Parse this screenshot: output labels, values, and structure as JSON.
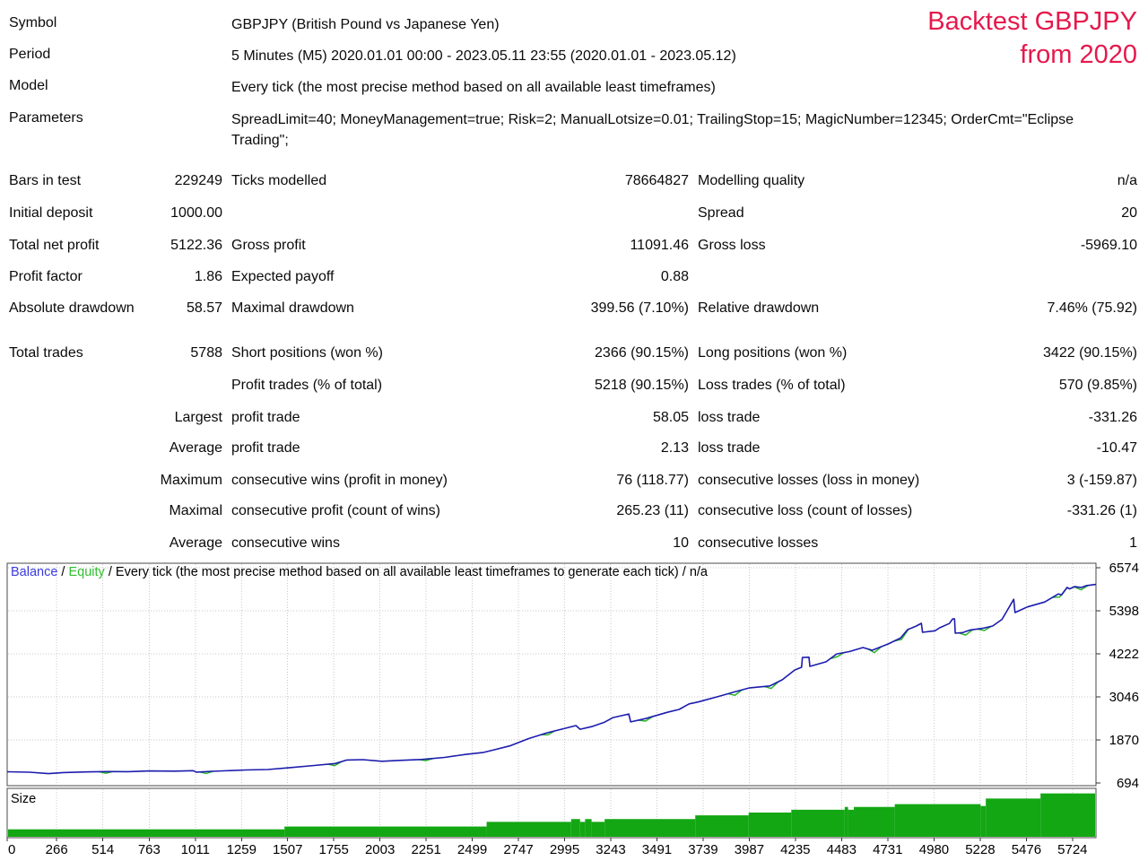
{
  "title": {
    "line1": "Backtest GBPJPY",
    "line2": "from 2020"
  },
  "info_rows": [
    {
      "label": "Symbol",
      "value": "GBPJPY (British Pound vs Japanese Yen)"
    },
    {
      "label": "Period",
      "value": "5 Minutes (M5) 2020.01.01 00:00 - 2023.05.11 23:55 (2020.01.01 - 2023.05.12)"
    },
    {
      "label": "Model",
      "value": "Every tick (the most precise method based on all available least timeframes)"
    },
    {
      "label": "Parameters",
      "value": "SpreadLimit=40; MoneyManagement=true; Risk=2; ManualLotsize=0.01; TrailingStop=15; MagicNumber=12345; OrderCmt=\"Eclipse Trading\";"
    }
  ],
  "stats_rows": [
    {
      "cells": [
        "Bars in test",
        "229249",
        "Ticks modelled",
        "78664827",
        "Modelling quality",
        "n/a"
      ]
    },
    {
      "cells": [
        "Initial deposit",
        "1000.00",
        "",
        "",
        "Spread",
        "20"
      ]
    },
    {
      "cells": [
        "Total net profit",
        "5122.36",
        "Gross profit",
        "11091.46",
        "Gross loss",
        "-5969.10"
      ]
    },
    {
      "cells": [
        "Profit factor",
        "1.86",
        "Expected payoff",
        "0.88",
        "",
        ""
      ]
    },
    {
      "cells": [
        "Absolute drawdown",
        "58.57",
        "Maximal drawdown",
        "399.56 (7.10%)",
        "Relative drawdown",
        "7.46% (75.92)"
      ]
    },
    {
      "cells": [
        "Total trades",
        "5788",
        "Short positions (won %)",
        "2366 (90.15%)",
        "Long positions (won %)",
        "3422 (90.15%)"
      ]
    },
    {
      "cells": [
        "",
        "",
        "Profit trades (% of total)",
        "5218 (90.15%)",
        "Loss trades (% of total)",
        "570 (9.85%)"
      ]
    },
    {
      "cells": [
        "",
        "Largest",
        "profit trade",
        "58.05",
        "loss trade",
        "-331.26"
      ]
    },
    {
      "cells": [
        "",
        "Average",
        "profit trade",
        "2.13",
        "loss trade",
        "-10.47"
      ]
    },
    {
      "cells": [
        "",
        "Maximum",
        "consecutive wins (profit in money)",
        "76 (118.77)",
        "consecutive losses (loss in money)",
        "3 (-159.87)"
      ]
    },
    {
      "cells": [
        "",
        "Maximal",
        "consecutive profit (count of wins)",
        "265.23 (11)",
        "consecutive loss (count of losses)",
        "-331.26 (1)"
      ]
    },
    {
      "cells": [
        "",
        "Average",
        "consecutive wins",
        "10",
        "consecutive losses",
        "1"
      ]
    }
  ],
  "chart_data": {
    "type": "line",
    "legend": {
      "balance_label": "Balance",
      "equity_label": "Equity",
      "separator": " / ",
      "model_note": "Every tick (the most precise method based on all available least timeframes to generate each tick)",
      "quality_note": "n/a"
    },
    "size_panel_label": "Size",
    "x_ticks": [
      0,
      266,
      514,
      763,
      1011,
      1259,
      1507,
      1755,
      2003,
      2251,
      2499,
      2747,
      2995,
      3243,
      3491,
      3739,
      3987,
      4235,
      4483,
      4731,
      4980,
      5228,
      5476,
      5724
    ],
    "y_ticks": [
      6574,
      5398,
      4222,
      3046,
      1870,
      694
    ],
    "x_range": [
      0,
      5850
    ],
    "y_range": [
      620,
      6700
    ],
    "initial_deposit": 1000,
    "final_balance": 6122.36,
    "balance_series": [
      [
        0,
        1000
      ],
      [
        120,
        988
      ],
      [
        222,
        948
      ],
      [
        300,
        978
      ],
      [
        420,
        995
      ],
      [
        530,
        1005
      ],
      [
        650,
        1002
      ],
      [
        764,
        1022
      ],
      [
        900,
        1018
      ],
      [
        1000,
        1030
      ],
      [
        1016,
        990
      ],
      [
        1100,
        1012
      ],
      [
        1283,
        1048
      ],
      [
        1400,
        1062
      ],
      [
        1519,
        1112
      ],
      [
        1650,
        1172
      ],
      [
        1762,
        1225
      ],
      [
        1825,
        1322
      ],
      [
        1910,
        1330
      ],
      [
        2014,
        1288
      ],
      [
        2110,
        1312
      ],
      [
        2226,
        1335
      ],
      [
        2350,
        1392
      ],
      [
        2462,
        1472
      ],
      [
        2560,
        1530
      ],
      [
        2617,
        1600
      ],
      [
        2700,
        1705
      ],
      [
        2800,
        1905
      ],
      [
        2900,
        2065
      ],
      [
        2980,
        2165
      ],
      [
        3056,
        2262
      ],
      [
        3078,
        2162
      ],
      [
        3140,
        2232
      ],
      [
        3210,
        2355
      ],
      [
        3255,
        2480
      ],
      [
        3340,
        2580
      ],
      [
        3350,
        2362
      ],
      [
        3430,
        2455
      ],
      [
        3547,
        2625
      ],
      [
        3610,
        2705
      ],
      [
        3664,
        2855
      ],
      [
        3710,
        2905
      ],
      [
        3829,
        3070
      ],
      [
        3905,
        3180
      ],
      [
        3985,
        3290
      ],
      [
        4098,
        3345
      ],
      [
        4165,
        3515
      ],
      [
        4232,
        3782
      ],
      [
        4268,
        3855
      ],
      [
        4273,
        4125
      ],
      [
        4308,
        4130
      ],
      [
        4313,
        3880
      ],
      [
        4400,
        4005
      ],
      [
        4457,
        4222
      ],
      [
        4525,
        4285
      ],
      [
        4598,
        4395
      ],
      [
        4648,
        4322
      ],
      [
        4735,
        4495
      ],
      [
        4800,
        4655
      ],
      [
        4838,
        4885
      ],
      [
        4885,
        4985
      ],
      [
        4912,
        5058
      ],
      [
        4918,
        4812
      ],
      [
        4985,
        4855
      ],
      [
        5010,
        4935
      ],
      [
        5062,
        5052
      ],
      [
        5080,
        5178
      ],
      [
        5090,
        5180
      ],
      [
        5094,
        4788
      ],
      [
        5135,
        4805
      ],
      [
        5175,
        4875
      ],
      [
        5245,
        4925
      ],
      [
        5295,
        4985
      ],
      [
        5345,
        5165
      ],
      [
        5408,
        5715
      ],
      [
        5415,
        5352
      ],
      [
        5482,
        5505
      ],
      [
        5575,
        5640
      ],
      [
        5648,
        5862
      ],
      [
        5665,
        5832
      ],
      [
        5695,
        6038
      ],
      [
        5708,
        5998
      ],
      [
        5735,
        6060
      ],
      [
        5770,
        6035
      ],
      [
        5800,
        6090
      ],
      [
        5850,
        6122
      ]
    ],
    "equity_dips": [
      [
        530,
        45
      ],
      [
        1070,
        50
      ],
      [
        1760,
        55
      ],
      [
        2250,
        45
      ],
      [
        2905,
        60
      ],
      [
        3430,
        70
      ],
      [
        3910,
        95
      ],
      [
        4105,
        85
      ],
      [
        4460,
        80
      ],
      [
        4660,
        90
      ],
      [
        4805,
        70
      ],
      [
        5150,
        95
      ],
      [
        5250,
        70
      ],
      [
        5655,
        75
      ],
      [
        5770,
        60
      ]
    ],
    "size_steps": [
      [
        0,
        0.16
      ],
      [
        1490,
        0.22
      ],
      [
        2576,
        0.32
      ],
      [
        3030,
        0.38
      ],
      [
        3078,
        0.32
      ],
      [
        3105,
        0.38
      ],
      [
        3140,
        0.32
      ],
      [
        3210,
        0.38
      ],
      [
        3697,
        0.46
      ],
      [
        3984,
        0.52
      ],
      [
        4213,
        0.58
      ],
      [
        4500,
        0.64
      ],
      [
        4518,
        0.58
      ],
      [
        4549,
        0.64
      ],
      [
        4769,
        0.7
      ],
      [
        5230,
        0.66
      ],
      [
        5258,
        0.82
      ],
      [
        5552,
        0.93
      ]
    ],
    "colors": {
      "balance_line": "#1c1cae",
      "equity_line": "#22b122",
      "balance_label": "#3a3ae0",
      "equity_label": "#2fbf2f",
      "size_bar": "#13a713",
      "grid": "#c9c9c9",
      "panel_border": "#4a4a4a",
      "axis_text": "#000000"
    }
  }
}
